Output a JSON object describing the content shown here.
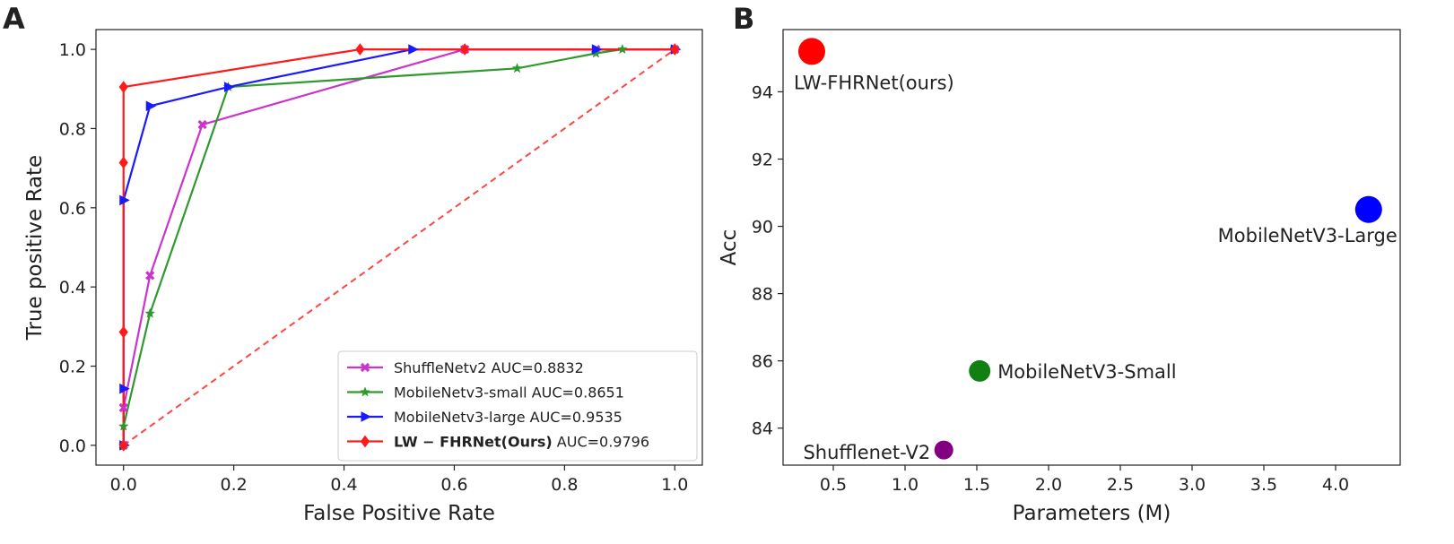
{
  "panel_labels": [
    "A",
    "B"
  ],
  "chart_data": [
    {
      "type": "line",
      "panel": "A",
      "xlabel": "False Positive Rate",
      "ylabel": "True positive Rate",
      "xlim": [
        -0.05,
        1.05
      ],
      "ylim": [
        -0.05,
        1.05
      ],
      "xticks": [
        0.0,
        0.2,
        0.4,
        0.6,
        0.8,
        1.0
      ],
      "yticks": [
        0.0,
        0.2,
        0.4,
        0.6,
        0.8,
        1.0
      ],
      "xtick_labels": [
        "0.0",
        "0.2",
        "0.4",
        "0.6",
        "0.8",
        "1.0"
      ],
      "ytick_labels": [
        "0.0",
        "0.2",
        "0.4",
        "0.6",
        "0.8",
        "1.0"
      ],
      "legend_position": "lower-right",
      "series": [
        {
          "name": "ShuffleNetv2",
          "auc_text": "AUC=0.8832",
          "bold": false,
          "color": "#cc33cc",
          "marker": "x",
          "x": [
            0,
            0,
            0.048,
            0.143,
            0.619,
            0.857,
            1.0
          ],
          "y": [
            0,
            0.095,
            0.429,
            0.81,
            1.0,
            1.0,
            1.0
          ]
        },
        {
          "name": "MobileNetv3-small",
          "auc_text": "AUC=0.8651",
          "bold": false,
          "color": "#2e9a2e",
          "marker": "star",
          "x": [
            0,
            0,
            0.048,
            0.19,
            0.714,
            0.857,
            0.905,
            1.0
          ],
          "y": [
            0,
            0.048,
            0.333,
            0.905,
            0.952,
            0.99,
            1.0,
            1.0
          ]
        },
        {
          "name": "MobileNetv3-large",
          "auc_text": "AUC=0.9535",
          "bold": false,
          "color": "#1a1aff",
          "marker": "triangle-right",
          "x": [
            0,
            0,
            0,
            0.048,
            0.19,
            0.524,
            0.857,
            1.0
          ],
          "y": [
            0,
            0.143,
            0.619,
            0.857,
            0.905,
            1.0,
            1.0,
            1.0
          ]
        },
        {
          "name": "LW − FHRNet(Ours)",
          "auc_text": "AUC=0.9796",
          "bold": true,
          "color": "#ff1a1a",
          "marker": "diamond",
          "x": [
            0,
            0,
            0,
            0,
            0.429,
            0.619,
            1.0
          ],
          "y": [
            0,
            0.286,
            0.714,
            0.905,
            1.0,
            1.0,
            1.0
          ]
        }
      ],
      "reference_line": {
        "x": [
          0,
          1
        ],
        "y": [
          0,
          1
        ],
        "color": "#ff4444",
        "style": "dashed"
      }
    },
    {
      "type": "scatter",
      "panel": "B",
      "xlabel": "Parameters (M)",
      "ylabel": "Acc",
      "xlim": [
        0.15,
        4.45
      ],
      "ylim": [
        82.9,
        95.85
      ],
      "xticks": [
        0.5,
        1.0,
        1.5,
        2.0,
        2.5,
        3.0,
        3.5,
        4.0
      ],
      "yticks": [
        84,
        86,
        88,
        90,
        92,
        94
      ],
      "xtick_labels": [
        "0.5",
        "1.0",
        "1.5",
        "2.0",
        "2.5",
        "3.0",
        "3.5",
        "4.0"
      ],
      "ytick_labels": [
        "84",
        "86",
        "88",
        "90",
        "92",
        "94"
      ],
      "points": [
        {
          "label": "LW-FHRNet(ours)",
          "x": 0.35,
          "y": 95.2,
          "color": "#ff0000",
          "size": "large",
          "label_anchor": "below-right"
        },
        {
          "label": "MobileNetV3-Large",
          "x": 4.23,
          "y": 90.5,
          "color": "#0000ff",
          "size": "large",
          "label_anchor": "below-left"
        },
        {
          "label": "MobileNetV3-Small",
          "x": 1.52,
          "y": 85.7,
          "color": "#118011",
          "size": "medium",
          "label_anchor": "right"
        },
        {
          "label": "Shufflenet-V2",
          "x": 1.27,
          "y": 83.35,
          "color": "#800080",
          "size": "small",
          "label_anchor": "left"
        }
      ]
    }
  ]
}
